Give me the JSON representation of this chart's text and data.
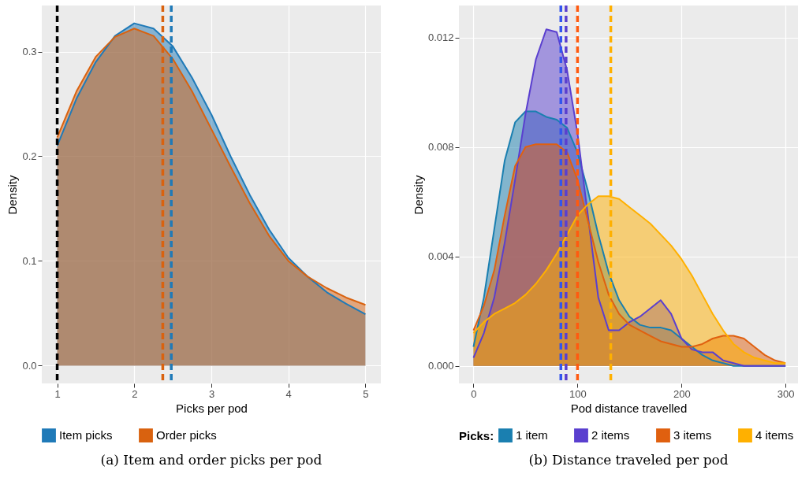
{
  "chart_data": [
    {
      "type": "area",
      "title": "(a) Item and order picks per pod",
      "xlabel": "Picks per pod",
      "ylabel": "Density",
      "x": [
        1,
        1.25,
        1.5,
        1.75,
        2,
        2.25,
        2.5,
        2.75,
        3,
        3.25,
        3.5,
        3.75,
        4,
        4.25,
        4.5,
        4.75,
        5
      ],
      "series": [
        {
          "name": "Item picks",
          "color": "#1f7ab8",
          "values": [
            0.21,
            0.255,
            0.29,
            0.315,
            0.327,
            0.322,
            0.305,
            0.275,
            0.24,
            0.2,
            0.163,
            0.13,
            0.103,
            0.085,
            0.07,
            0.059,
            0.049
          ]
        },
        {
          "name": "Order picks",
          "color": "#d9620f",
          "values": [
            0.218,
            0.262,
            0.295,
            0.314,
            0.322,
            0.315,
            0.293,
            0.262,
            0.226,
            0.19,
            0.155,
            0.124,
            0.1,
            0.085,
            0.074,
            0.065,
            0.058
          ]
        }
      ],
      "xlim": [
        0.8,
        5.2
      ],
      "ylim": [
        -0.017,
        0.344
      ],
      "xticks": [
        1,
        2,
        3,
        4,
        5
      ],
      "yticks": [
        {
          "value": 0,
          "label": "0.0"
        },
        0.1,
        0.2,
        0.3
      ],
      "ref_lines": [
        {
          "axis": "x",
          "value": 1,
          "color": "#000000",
          "line_style": "dashed"
        },
        {
          "axis": "x",
          "value": 2.37,
          "color": "#d9620f",
          "line_style": "dashed"
        },
        {
          "axis": "x",
          "value": 2.48,
          "color": "#1f7ab8",
          "line_style": "dashed"
        }
      ],
      "grid": true,
      "legend": "bottom"
    },
    {
      "type": "area",
      "title": "(b) Distance traveled per pod",
      "xlabel": "Pod distance travelled",
      "ylabel": "Density",
      "legend_title": "Picks:",
      "x": [
        0,
        10,
        20,
        30,
        40,
        50,
        60,
        70,
        80,
        90,
        100,
        110,
        120,
        130,
        140,
        150,
        160,
        170,
        180,
        190,
        200,
        210,
        220,
        230,
        240,
        250,
        260,
        270,
        280,
        290,
        300
      ],
      "series": [
        {
          "name": "1 item",
          "color": "#1a7fb0",
          "values": [
            0.0007,
            0.0025,
            0.005,
            0.0075,
            0.0089,
            0.0093,
            0.0093,
            0.0091,
            0.009,
            0.0087,
            0.0078,
            0.0064,
            0.0048,
            0.0034,
            0.0024,
            0.0018,
            0.0015,
            0.0014,
            0.0014,
            0.0013,
            0.001,
            0.0007,
            0.0004,
            0.0002,
            0.0001,
            0,
            0,
            0,
            0,
            0,
            0
          ]
        },
        {
          "name": "2 items",
          "color": "#5a3fcf",
          "values": [
            0.0003,
            0.0012,
            0.0025,
            0.0045,
            0.0068,
            0.0092,
            0.0112,
            0.0123,
            0.0122,
            0.0108,
            0.0085,
            0.0055,
            0.0025,
            0.0013,
            0.0013,
            0.0016,
            0.0018,
            0.0021,
            0.0024,
            0.0019,
            0.001,
            0.0006,
            0.0005,
            0.0005,
            0.0002,
            0.0001,
            0,
            0,
            0,
            0,
            0
          ]
        },
        {
          "name": "3 items",
          "color": "#e0600f",
          "values": [
            0.0013,
            0.0022,
            0.0035,
            0.0055,
            0.0073,
            0.008,
            0.0081,
            0.0081,
            0.0081,
            0.0078,
            0.0068,
            0.0053,
            0.0038,
            0.0026,
            0.0019,
            0.0015,
            0.0013,
            0.0011,
            0.0009,
            0.0008,
            0.0007,
            0.0007,
            0.0008,
            0.001,
            0.0011,
            0.0011,
            0.001,
            0.0007,
            0.0004,
            0.0002,
            0.0001
          ]
        },
        {
          "name": "4 items",
          "color": "#ffb000",
          "values": [
            0.0012,
            0.0016,
            0.0019,
            0.0021,
            0.0023,
            0.0026,
            0.003,
            0.0035,
            0.0041,
            0.0048,
            0.0055,
            0.0059,
            0.0062,
            0.0062,
            0.0061,
            0.0058,
            0.0055,
            0.0052,
            0.0048,
            0.0044,
            0.0039,
            0.0033,
            0.0026,
            0.0019,
            0.0013,
            0.0008,
            0.0005,
            0.0003,
            0.0002,
            0.0001,
            0.0001
          ]
        }
      ],
      "xlim": [
        -14,
        312
      ],
      "ylim": [
        -0.00064,
        0.01317
      ],
      "xticks": [
        0,
        100,
        200,
        300
      ],
      "yticks": [
        {
          "value": 0,
          "label": "0.000"
        },
        {
          "value": 0.004,
          "label": "0.004"
        },
        {
          "value": 0.008,
          "label": "0.008"
        },
        {
          "value": 0.012,
          "label": "0.012"
        }
      ],
      "ref_lines": [
        {
          "axis": "x",
          "value": 84,
          "color": "#3355ee",
          "line_style": "dashed"
        },
        {
          "axis": "x",
          "value": 89,
          "color": "#5a3fcf",
          "line_style": "dashed"
        },
        {
          "axis": "x",
          "value": 100,
          "color": "#ff5a10",
          "line_style": "dashed"
        },
        {
          "axis": "x",
          "value": 132,
          "color": "#ffb000",
          "line_style": "dashed"
        }
      ],
      "grid": true,
      "legend": "bottom"
    }
  ]
}
